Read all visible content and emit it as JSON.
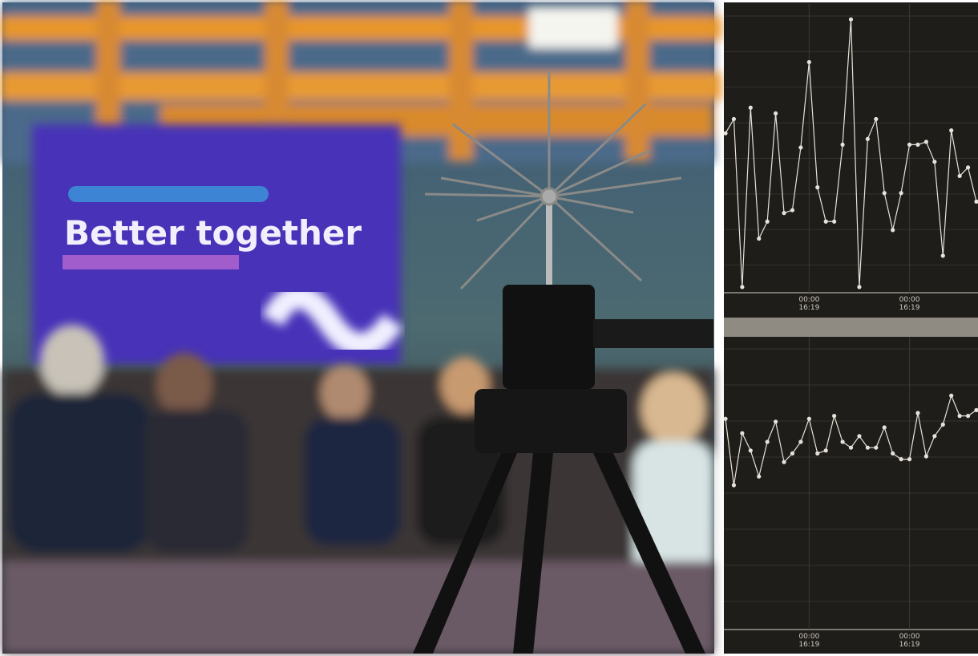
{
  "photo": {
    "screen_title": "Better together"
  },
  "chart_data": [
    {
      "type": "line",
      "color": "#e6e2da",
      "ylim": [
        0,
        100
      ],
      "grid": true,
      "categories": [
        null,
        null,
        null,
        null,
        null,
        null,
        null,
        null,
        null,
        null,
        "00:00\n16:19",
        null,
        null,
        null,
        null,
        null,
        null,
        null,
        null,
        null,
        null,
        null,
        "00:00\n16:19",
        null,
        null,
        null,
        null,
        null,
        null,
        null,
        null
      ],
      "values": [
        56,
        61,
        2,
        65,
        19,
        25,
        63,
        28,
        29,
        51,
        81,
        37,
        25,
        25,
        52,
        96,
        2,
        54,
        61,
        35,
        22,
        35,
        52,
        52,
        53,
        46,
        13,
        57,
        41,
        44,
        32
      ]
    },
    {
      "type": "line",
      "color": "#e6e2da",
      "ylim": [
        0,
        100
      ],
      "grid": true,
      "categories": [
        null,
        null,
        null,
        null,
        null,
        null,
        null,
        null,
        null,
        null,
        "00:00\n16:19",
        null,
        null,
        null,
        null,
        null,
        null,
        null,
        null,
        null,
        null,
        null,
        "00:00\n16:19",
        null,
        null,
        null,
        null,
        null,
        null,
        null,
        null
      ],
      "values": [
        73,
        50,
        68,
        62,
        53,
        65,
        72,
        58,
        61,
        65,
        73,
        61,
        62,
        74,
        65,
        63,
        67,
        63,
        63,
        70,
        61,
        59,
        59,
        75,
        60,
        67,
        71,
        81,
        74,
        74,
        76
      ]
    }
  ]
}
